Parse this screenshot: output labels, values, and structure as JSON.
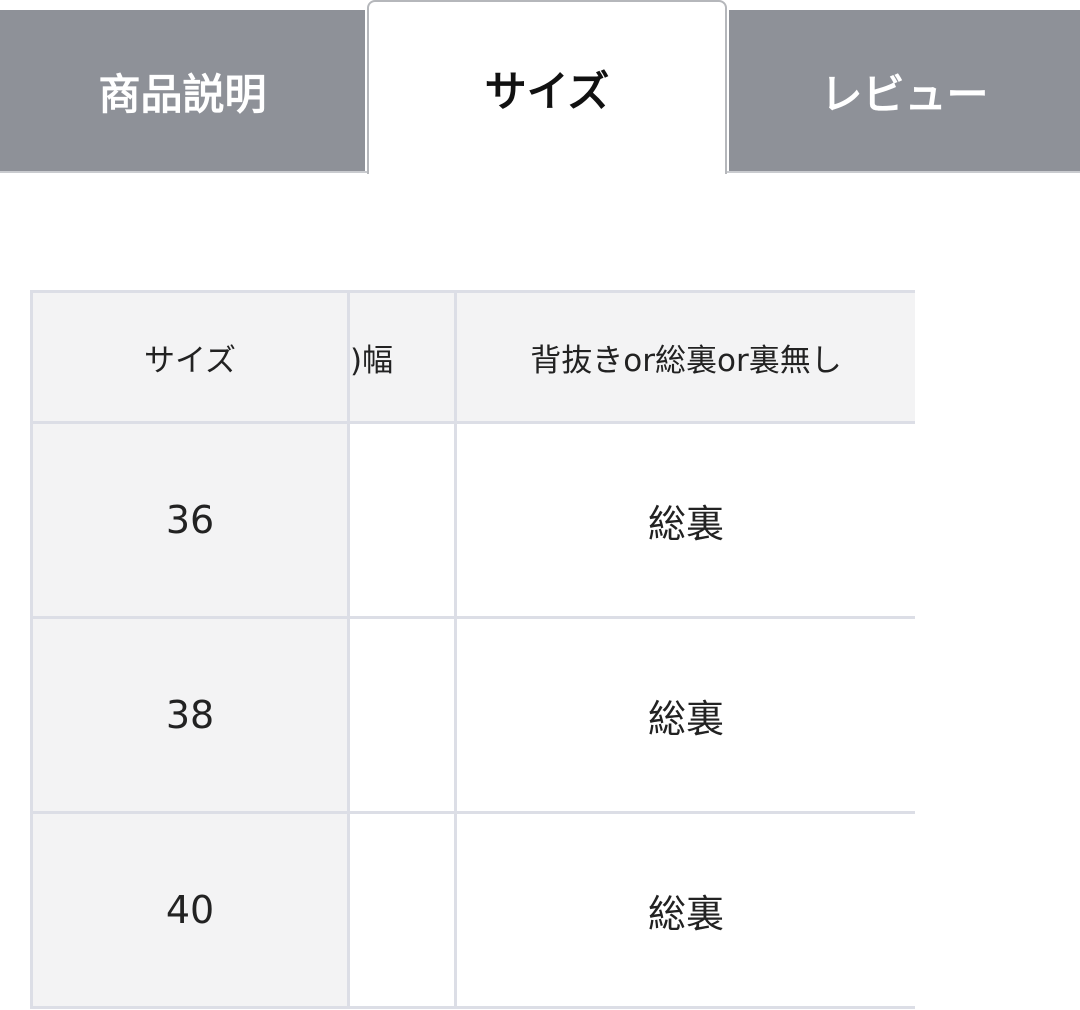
{
  "tabs": [
    {
      "label": "商品説明",
      "active": false
    },
    {
      "label": "サイズ",
      "active": true
    },
    {
      "label": "レビュー",
      "active": false
    }
  ],
  "colors": {
    "tab_inactive": "#8e9198",
    "header_bg": "#f3f3f4",
    "border": "#dcdee6"
  },
  "table": {
    "headers": [
      "サイズ",
      ")幅",
      "背抜きor総裏or裏無し"
    ],
    "rows": [
      {
        "size": "36",
        "width": "",
        "lining": "総裏"
      },
      {
        "size": "38",
        "width": "",
        "lining": "総裏"
      },
      {
        "size": "40",
        "width": "",
        "lining": "総裏"
      }
    ]
  }
}
